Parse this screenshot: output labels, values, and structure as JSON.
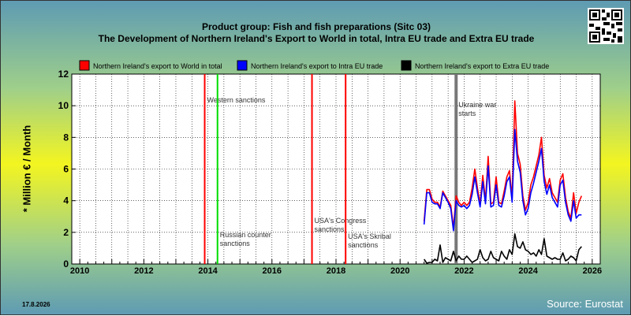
{
  "title_line1": "Product group: Fish and fish preparations (Sitc 03)",
  "title_line2": "The Development of Northern Ireland's Export to World in total, Intra EU trade and Extra EU trade",
  "date_stamp": "17.8.2026",
  "source": "Source: Eurostat",
  "chart_data": {
    "type": "line",
    "title": "The Development of Northern Ireland's Export to World in total, Intra EU trade and Extra EU trade",
    "subtitle": "Product group: Fish and fish preparations (Sitc 03)",
    "xlabel": "",
    "ylabel": "* Million € / Month",
    "xlim": [
      2009.75,
      2026.25
    ],
    "ylim": [
      0,
      12
    ],
    "x_ticks": [
      2010,
      2012,
      2014,
      2016,
      2018,
      2020,
      2022,
      2024,
      2026
    ],
    "y_ticks": [
      0,
      2,
      4,
      6,
      8,
      10,
      12
    ],
    "grid": true,
    "legend_position": "top",
    "background": "#ffffff",
    "series": [
      {
        "name": "Northern Ireland's export to World in total",
        "color": "#ff0000",
        "x_start": 2020.75,
        "step": 0.08333,
        "values": [
          2.7,
          4.7,
          4.7,
          4.1,
          3.9,
          3.9,
          3.6,
          4.6,
          4.3,
          4.0,
          3.7,
          2.3,
          4.3,
          3.9,
          3.7,
          3.9,
          3.7,
          3.9,
          4.8,
          6.0,
          4.8,
          3.8,
          5.6,
          4.0,
          6.8,
          3.8,
          3.9,
          5.5,
          3.9,
          3.8,
          4.6,
          5.5,
          5.9,
          4.2,
          10.3,
          7.0,
          6.3,
          4.3,
          3.4,
          3.9,
          5.0,
          5.5,
          6.2,
          6.9,
          8.0,
          5.6,
          4.8,
          5.4,
          4.5,
          4.2,
          3.9,
          5.3,
          5.7,
          4.2,
          3.3,
          2.9,
          4.5,
          3.2,
          3.9,
          4.3
        ]
      },
      {
        "name": "Northern Ireland's export to Intra EU trade",
        "color": "#0000ff",
        "x_start": 2020.75,
        "step": 0.08333,
        "values": [
          2.5,
          4.5,
          4.5,
          3.9,
          3.8,
          3.8,
          3.5,
          4.5,
          4.2,
          3.9,
          3.5,
          2.1,
          4.0,
          3.7,
          3.6,
          3.7,
          3.5,
          3.7,
          4.4,
          5.5,
          4.5,
          3.6,
          5.2,
          3.8,
          6.2,
          3.6,
          3.7,
          5.0,
          3.7,
          3.6,
          4.3,
          5.2,
          5.5,
          3.9,
          8.5,
          6.5,
          5.8,
          4.0,
          3.1,
          3.5,
          4.5,
          5.1,
          5.8,
          6.5,
          7.3,
          5.2,
          4.4,
          5.0,
          4.2,
          3.9,
          3.6,
          5.0,
          5.3,
          3.9,
          3.1,
          2.7,
          4.0,
          2.9,
          3.1,
          3.1
        ]
      },
      {
        "name": "Northern Ireland's export to Extra EU trade",
        "color": "#000000",
        "x_start": 2020.75,
        "step": 0.08333,
        "values": [
          0.3,
          0.05,
          0.1,
          0.1,
          0.3,
          0.2,
          1.2,
          0.1,
          0.4,
          0.3,
          0.2,
          0.8,
          0.2,
          0.5,
          0.3,
          0.3,
          0.5,
          0.3,
          0.1,
          0.2,
          0.3,
          0.9,
          0.4,
          0.2,
          0.3,
          0.8,
          0.4,
          0.3,
          0.2,
          0.8,
          0.5,
          0.3,
          0.9,
          0.6,
          1.9,
          1.1,
          1.0,
          1.4,
          0.9,
          0.8,
          0.6,
          0.7,
          0.5,
          0.9,
          0.6,
          1.6,
          0.5,
          0.4,
          0.3,
          0.4,
          0.3,
          0.3,
          0.7,
          0.2,
          0.3,
          0.5,
          0.4,
          0.2,
          0.9,
          1.1
        ]
      }
    ],
    "vertical_markers": [
      {
        "x": 2013.9,
        "color": "#ff0000",
        "label": "Western sanctions",
        "label_y": 10.2
      },
      {
        "x": 2014.3,
        "color": "#00dd00",
        "label": "Russian counter sanctions",
        "label_y": 1.7
      },
      {
        "x": 2017.25,
        "color": "#ff0000",
        "label": "USA's Congress sanctions",
        "label_y": 2.6
      },
      {
        "x": 2018.3,
        "color": "#ff0000",
        "label": "USA's Skribal sanctions",
        "label_y": 1.6
      },
      {
        "x": 2021.75,
        "color": "#777777",
        "label": "Ukraine war starts",
        "label_y": 9.9
      }
    ]
  }
}
